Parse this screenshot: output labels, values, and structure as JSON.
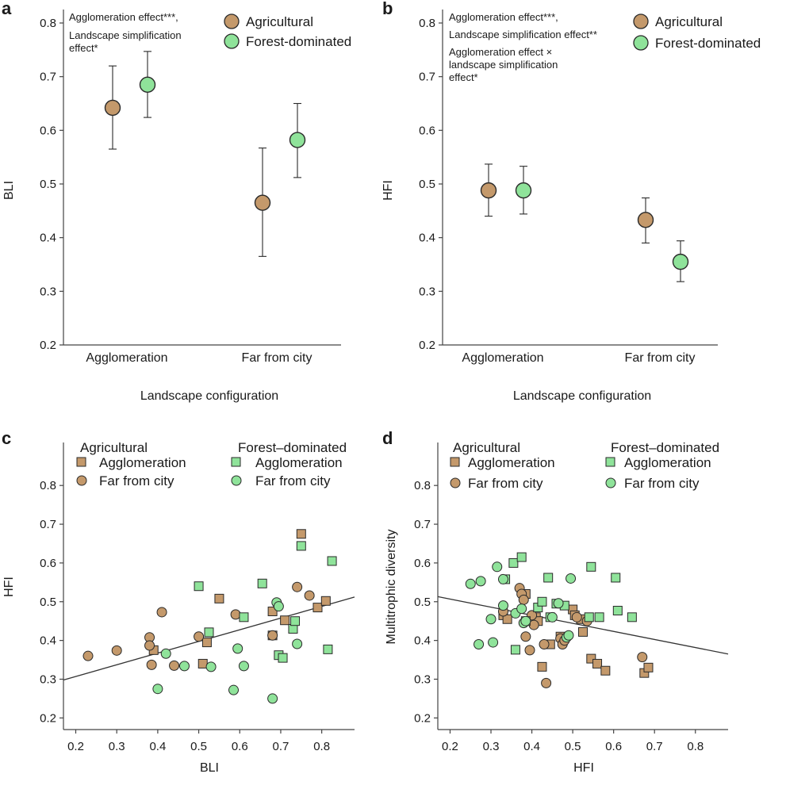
{
  "colors": {
    "agricultural": "#c4996b",
    "forest": "#8fe39a",
    "stroke": "#2a2a2a",
    "axis": "#444444",
    "line": "#333333"
  },
  "chart_data": [
    {
      "panel": "a",
      "type": "scatter",
      "ylabel": "BLI",
      "xlabel": "Landscape configuration",
      "ylim": [
        0.2,
        0.8
      ],
      "yticks": [
        "0.2",
        "0.3",
        "0.4",
        "0.5",
        "0.6",
        "0.7",
        "0.8"
      ],
      "categories": [
        "Agglomeration",
        "Far from city"
      ],
      "annotation": [
        "Agglomeration effect***,",
        "Landscape simplification",
        "effect*"
      ],
      "legend": [
        "Agricultural",
        "Forest-dominated"
      ],
      "series": [
        {
          "name": "Agricultural",
          "values": [
            0.642,
            0.465
          ],
          "lower": [
            0.565,
            0.365
          ],
          "upper": [
            0.72,
            0.567
          ]
        },
        {
          "name": "Forest-dominated",
          "values": [
            0.685,
            0.582
          ],
          "lower": [
            0.624,
            0.512
          ],
          "upper": [
            0.747,
            0.65
          ]
        }
      ]
    },
    {
      "panel": "b",
      "type": "scatter",
      "ylabel": "HFI",
      "xlabel": "Landscape configuration",
      "ylim": [
        0.2,
        0.8
      ],
      "yticks": [
        "0.2",
        "0.3",
        "0.4",
        "0.5",
        "0.6",
        "0.7",
        "0.8"
      ],
      "categories": [
        "Agglomeration",
        "Far from city"
      ],
      "annotation": [
        "Agglomeration effect***,",
        "Landscape simplification effect**",
        "Agglomeration effect ×",
        "landscape simplification",
        "effect*"
      ],
      "legend": [
        "Agricultural",
        "Forest-dominated"
      ],
      "series": [
        {
          "name": "Agricultural",
          "values": [
            0.488,
            0.433
          ],
          "lower": [
            0.44,
            0.39
          ],
          "upper": [
            0.537,
            0.474
          ]
        },
        {
          "name": "Forest-dominated",
          "values": [
            0.488,
            0.355
          ],
          "lower": [
            0.444,
            0.318
          ],
          "upper": [
            0.533,
            0.394
          ]
        }
      ]
    },
    {
      "panel": "c",
      "type": "scatter",
      "xlabel": "BLI",
      "ylabel": "HFI",
      "xlim": [
        0.17,
        0.88
      ],
      "ylim": [
        0.17,
        0.87
      ],
      "xticks": [
        "0.2",
        "0.3",
        "0.4",
        "0.5",
        "0.6",
        "0.7",
        "0.8"
      ],
      "yticks": [
        "0.2",
        "0.3",
        "0.4",
        "0.5",
        "0.6",
        "0.7",
        "0.8"
      ],
      "legend_headers": [
        "Agricultural",
        "Forest–dominated"
      ],
      "legend_items": [
        "Agglomeration",
        "Far from city"
      ],
      "regression": {
        "x": [
          0.17,
          0.88
        ],
        "y": [
          0.298,
          0.512
        ]
      },
      "series": [
        {
          "name": "Agricultural – Agglomeration",
          "group": "agricultural",
          "marker": "square",
          "points": [
            [
              0.39,
              0.375
            ],
            [
              0.51,
              0.34
            ],
            [
              0.52,
              0.395
            ],
            [
              0.55,
              0.508
            ],
            [
              0.68,
              0.413
            ],
            [
              0.68,
              0.475
            ],
            [
              0.71,
              0.452
            ],
            [
              0.75,
              0.675
            ],
            [
              0.79,
              0.485
            ],
            [
              0.81,
              0.502
            ]
          ]
        },
        {
          "name": "Agricultural – Far from city",
          "group": "agricultural",
          "marker": "circle",
          "points": [
            [
              0.23,
              0.36
            ],
            [
              0.3,
              0.374
            ],
            [
              0.38,
              0.408
            ],
            [
              0.38,
              0.387
            ],
            [
              0.385,
              0.337
            ],
            [
              0.41,
              0.473
            ],
            [
              0.44,
              0.335
            ],
            [
              0.5,
              0.41
            ],
            [
              0.59,
              0.467
            ],
            [
              0.68,
              0.413
            ],
            [
              0.74,
              0.538
            ],
            [
              0.77,
              0.516
            ]
          ]
        },
        {
          "name": "Forest-dominated – Agglomeration",
          "group": "forest",
          "marker": "square",
          "points": [
            [
              0.5,
              0.54
            ],
            [
              0.525,
              0.421
            ],
            [
              0.61,
              0.46
            ],
            [
              0.655,
              0.547
            ],
            [
              0.695,
              0.362
            ],
            [
              0.705,
              0.355
            ],
            [
              0.73,
              0.43
            ],
            [
              0.735,
              0.45
            ],
            [
              0.75,
              0.644
            ],
            [
              0.815,
              0.377
            ],
            [
              0.825,
              0.605
            ]
          ]
        },
        {
          "name": "Forest-dominated – Far from city",
          "group": "forest",
          "marker": "circle",
          "points": [
            [
              0.4,
              0.275
            ],
            [
              0.42,
              0.366
            ],
            [
              0.465,
              0.334
            ],
            [
              0.53,
              0.332
            ],
            [
              0.585,
              0.272
            ],
            [
              0.595,
              0.379
            ],
            [
              0.61,
              0.334
            ],
            [
              0.68,
              0.25
            ],
            [
              0.69,
              0.498
            ],
            [
              0.695,
              0.488
            ],
            [
              0.74,
              0.391
            ]
          ]
        }
      ]
    },
    {
      "panel": "d",
      "type": "scatter",
      "xlabel": "HFI",
      "ylabel": "Multitrophic diversity",
      "xlim": [
        0.17,
        0.88
      ],
      "ylim": [
        0.17,
        0.87
      ],
      "xticks": [
        "0.2",
        "0.3",
        "0.4",
        "0.5",
        "0.6",
        "0.7",
        "0.8"
      ],
      "yticks": [
        "0.2",
        "0.3",
        "0.4",
        "0.5",
        "0.6",
        "0.7",
        "0.8"
      ],
      "legend_headers": [
        "Agricultural",
        "Forest–dominated"
      ],
      "legend_items": [
        "Agglomeration",
        "Far from city"
      ],
      "regression": {
        "x": [
          0.17,
          0.88
        ],
        "y": [
          0.513,
          0.365
        ]
      },
      "series": [
        {
          "name": "Agricultural – Agglomeration",
          "group": "agricultural",
          "marker": "square",
          "points": [
            [
              0.33,
              0.465
            ],
            [
              0.34,
              0.455
            ],
            [
              0.385,
              0.52
            ],
            [
              0.41,
              0.46
            ],
            [
              0.415,
              0.45
            ],
            [
              0.425,
              0.332
            ],
            [
              0.445,
              0.39
            ],
            [
              0.47,
              0.41
            ],
            [
              0.5,
              0.48
            ],
            [
              0.505,
              0.465
            ],
            [
              0.52,
              0.455
            ],
            [
              0.525,
              0.422
            ],
            [
              0.545,
              0.353
            ],
            [
              0.56,
              0.34
            ],
            [
              0.58,
              0.322
            ],
            [
              0.675,
              0.316
            ],
            [
              0.685,
              0.33
            ]
          ]
        },
        {
          "name": "Agricultural – Far from city",
          "group": "agricultural",
          "marker": "circle",
          "points": [
            [
              0.33,
              0.475
            ],
            [
              0.37,
              0.535
            ],
            [
              0.375,
              0.52
            ],
            [
              0.38,
              0.505
            ],
            [
              0.385,
              0.41
            ],
            [
              0.395,
              0.375
            ],
            [
              0.4,
              0.465
            ],
            [
              0.405,
              0.44
            ],
            [
              0.43,
              0.39
            ],
            [
              0.435,
              0.29
            ],
            [
              0.47,
              0.405
            ],
            [
              0.475,
              0.39
            ],
            [
              0.48,
              0.4
            ],
            [
              0.51,
              0.46
            ],
            [
              0.535,
              0.45
            ],
            [
              0.67,
              0.357
            ]
          ]
        },
        {
          "name": "Forest-dominated – Agglomeration",
          "group": "forest",
          "marker": "square",
          "points": [
            [
              0.335,
              0.558
            ],
            [
              0.355,
              0.6
            ],
            [
              0.36,
              0.376
            ],
            [
              0.375,
              0.615
            ],
            [
              0.385,
              0.45
            ],
            [
              0.415,
              0.485
            ],
            [
              0.425,
              0.5
            ],
            [
              0.44,
              0.562
            ],
            [
              0.445,
              0.46
            ],
            [
              0.46,
              0.495
            ],
            [
              0.48,
              0.49
            ],
            [
              0.54,
              0.46
            ],
            [
              0.545,
              0.59
            ],
            [
              0.565,
              0.46
            ],
            [
              0.605,
              0.562
            ],
            [
              0.61,
              0.477
            ],
            [
              0.645,
              0.46
            ]
          ]
        },
        {
          "name": "Forest-dominated – Far from city",
          "group": "forest",
          "marker": "circle",
          "points": [
            [
              0.25,
              0.546
            ],
            [
              0.27,
              0.39
            ],
            [
              0.275,
              0.553
            ],
            [
              0.3,
              0.455
            ],
            [
              0.305,
              0.395
            ],
            [
              0.315,
              0.59
            ],
            [
              0.33,
              0.558
            ],
            [
              0.33,
              0.49
            ],
            [
              0.36,
              0.47
            ],
            [
              0.375,
              0.482
            ],
            [
              0.38,
              0.445
            ],
            [
              0.385,
              0.45
            ],
            [
              0.45,
              0.46
            ],
            [
              0.465,
              0.496
            ],
            [
              0.485,
              0.408
            ],
            [
              0.49,
              0.413
            ],
            [
              0.495,
              0.56
            ]
          ]
        }
      ]
    }
  ]
}
